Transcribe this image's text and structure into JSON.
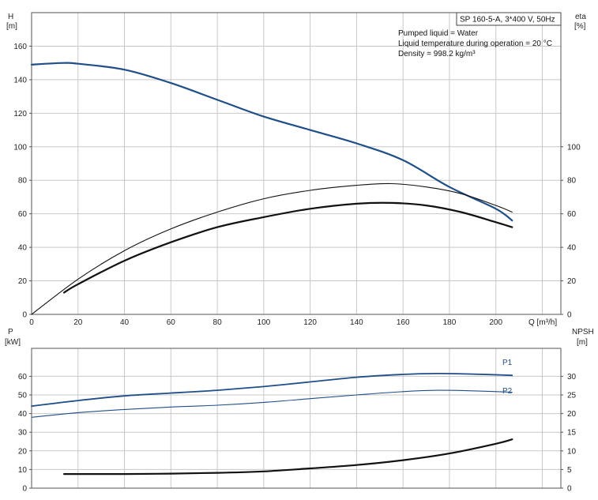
{
  "chart_data": [
    {
      "type": "line",
      "panel": "upper",
      "info": {
        "header": "SP 160-5-A, 3*400 V, 50Hz",
        "lines": [
          "Pumped liquid = Water",
          "Liquid temperature during operation = 20 °C",
          "Density = 998.2 kg/m³"
        ]
      },
      "xlabel": "Q [m³/h]",
      "xlim": [
        0,
        228
      ],
      "xticks": [
        0,
        20,
        40,
        60,
        80,
        100,
        120,
        140,
        160,
        180,
        200
      ],
      "y_left": {
        "label": [
          "H",
          "[m]"
        ],
        "lim": [
          0,
          180
        ],
        "ticks": [
          0,
          20,
          40,
          60,
          80,
          100,
          120,
          140,
          160
        ]
      },
      "y_right": {
        "label": [
          "eta",
          "[%]"
        ],
        "lim": [
          0,
          180
        ],
        "ticks": [
          0,
          20,
          40,
          60,
          80,
          100
        ]
      },
      "grid": true,
      "series": [
        {
          "axis": "left",
          "color": "#1f4e89",
          "width": 2.2,
          "x": [
            0,
            14,
            20,
            40,
            60,
            80,
            100,
            120,
            140,
            160,
            180,
            200,
            207
          ],
          "y": [
            149,
            150,
            149.5,
            146,
            138,
            128,
            118,
            110,
            102,
            92,
            76,
            63,
            56
          ]
        },
        {
          "axis": "right",
          "color": "#111111",
          "width": 1.1,
          "x": [
            0,
            20,
            40,
            60,
            80,
            100,
            120,
            140,
            155,
            170,
            185,
            200,
            207
          ],
          "y": [
            0,
            21,
            38,
            51,
            61,
            69,
            74,
            77,
            78,
            76,
            72,
            65,
            61
          ]
        },
        {
          "axis": "right",
          "color": "#111111",
          "width": 2.2,
          "x": [
            14,
            20,
            40,
            60,
            80,
            100,
            120,
            140,
            155,
            170,
            185,
            200,
            207
          ],
          "y": [
            13,
            18,
            32,
            43,
            52,
            58,
            63,
            66,
            66.5,
            65,
            61,
            55,
            52
          ]
        }
      ]
    },
    {
      "type": "line",
      "panel": "lower",
      "xlim": [
        0,
        228
      ],
      "xticks": [
        0,
        20,
        40,
        60,
        80,
        100,
        120,
        140,
        160,
        180,
        200
      ],
      "y_left": {
        "label": [
          "P",
          "[kW]"
        ],
        "lim": [
          0,
          75
        ],
        "ticks": [
          0,
          10,
          20,
          30,
          40,
          50,
          60
        ]
      },
      "y_right": {
        "label": [
          "NPSH",
          "[m]"
        ],
        "lim": [
          0,
          37.5
        ],
        "ticks": [
          0,
          5,
          10,
          15,
          20,
          25,
          30
        ]
      },
      "grid": true,
      "series": [
        {
          "name": "P1",
          "axis": "left",
          "color": "#1f4e89",
          "width": 1.8,
          "x": [
            0,
            20,
            40,
            60,
            80,
            100,
            120,
            140,
            160,
            175,
            190,
            207
          ],
          "y": [
            44,
            47,
            49.5,
            51,
            52.5,
            54.5,
            57,
            59.5,
            61,
            61.5,
            61.2,
            60.5
          ]
        },
        {
          "name": "P2",
          "axis": "left",
          "color": "#1f4e89",
          "width": 1.1,
          "x": [
            0,
            20,
            40,
            60,
            80,
            100,
            120,
            140,
            160,
            175,
            190,
            207
          ],
          "y": [
            38,
            40.5,
            42.2,
            43.5,
            44.5,
            46,
            48,
            50,
            51.8,
            52.5,
            52.2,
            51.5
          ]
        },
        {
          "axis": "right",
          "color": "#111111",
          "width": 2.2,
          "x": [
            14,
            40,
            60,
            80,
            100,
            120,
            140,
            160,
            180,
            200,
            207
          ],
          "y": [
            3.8,
            3.8,
            3.9,
            4.1,
            4.5,
            5.3,
            6.2,
            7.5,
            9.3,
            11.9,
            13.1
          ]
        }
      ]
    }
  ]
}
